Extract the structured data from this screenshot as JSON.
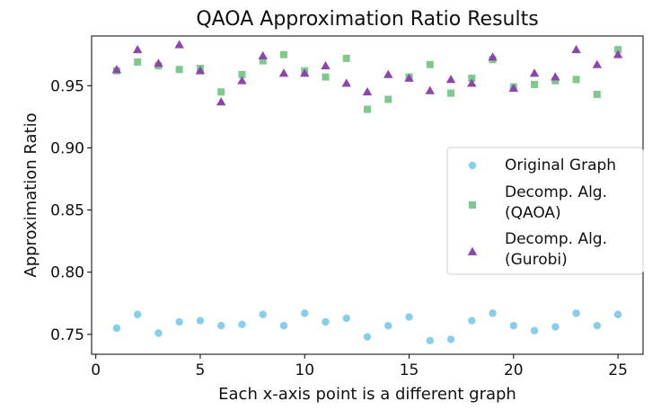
{
  "chart_data": {
    "type": "scatter",
    "title": "QAOA Approximation Ratio Results",
    "xlabel": "Each x-axis point is a different graph",
    "ylabel": "Approximation Ratio",
    "xlim": [
      -0.2,
      26.2
    ],
    "ylim": [
      0.734,
      0.99
    ],
    "xticks": [
      0,
      5,
      10,
      15,
      20,
      25
    ],
    "yticks": [
      0.75,
      0.8,
      0.85,
      0.9,
      0.95
    ],
    "ytick_labels": [
      "0.75",
      "0.80",
      "0.85",
      "0.90",
      "0.95"
    ],
    "legend_position": "center-right",
    "series": [
      {
        "name": "Original Graph",
        "marker": "circle",
        "color": "#87CEEB",
        "x": [
          1,
          2,
          3,
          4,
          5,
          6,
          7,
          8,
          9,
          10,
          11,
          12,
          13,
          14,
          15,
          16,
          17,
          18,
          19,
          20,
          21,
          22,
          23,
          24,
          25
        ],
        "y": [
          0.755,
          0.766,
          0.751,
          0.76,
          0.761,
          0.757,
          0.758,
          0.766,
          0.757,
          0.767,
          0.76,
          0.763,
          0.748,
          0.757,
          0.764,
          0.745,
          0.746,
          0.761,
          0.767,
          0.757,
          0.753,
          0.756,
          0.767,
          0.757,
          0.766
        ]
      },
      {
        "name": "Decomp. Alg. (QAOA)",
        "legend_lines": [
          "Decomp. Alg.",
          "(QAOA)"
        ],
        "marker": "square",
        "color": "#7FC98F",
        "x": [
          1,
          2,
          3,
          4,
          5,
          6,
          7,
          8,
          9,
          10,
          11,
          12,
          13,
          14,
          15,
          16,
          17,
          18,
          19,
          20,
          21,
          22,
          23,
          24,
          25
        ],
        "y": [
          0.962,
          0.969,
          0.966,
          0.963,
          0.964,
          0.945,
          0.959,
          0.97,
          0.975,
          0.962,
          0.957,
          0.972,
          0.931,
          0.939,
          0.957,
          0.967,
          0.944,
          0.956,
          0.971,
          0.949,
          0.951,
          0.954,
          0.955,
          0.943,
          0.979
        ]
      },
      {
        "name": "Decomp. Alg. (Gurobi)",
        "legend_lines": [
          "Decomp. Alg.",
          "(Gurobi)"
        ],
        "marker": "triangle",
        "color": "#8E44AD",
        "x": [
          1,
          2,
          3,
          4,
          5,
          6,
          7,
          8,
          9,
          10,
          11,
          12,
          13,
          14,
          15,
          16,
          17,
          18,
          19,
          20,
          21,
          22,
          23,
          24,
          25
        ],
        "y": [
          0.963,
          0.979,
          0.968,
          0.983,
          0.962,
          0.937,
          0.954,
          0.974,
          0.96,
          0.96,
          0.966,
          0.952,
          0.945,
          0.959,
          0.956,
          0.946,
          0.955,
          0.952,
          0.973,
          0.948,
          0.96,
          0.957,
          0.979,
          0.967,
          0.975
        ]
      }
    ]
  }
}
